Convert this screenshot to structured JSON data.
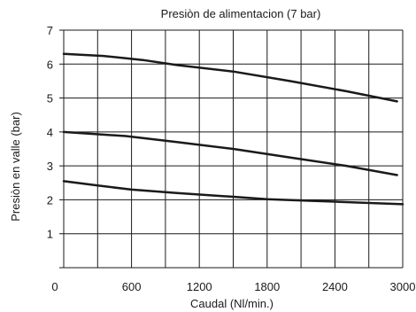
{
  "chart_data": {
    "type": "line",
    "title": "Presiòn de alimentacion  (7 bar)",
    "xlabel": "Caudal (Nl/min.)",
    "ylabel": "Presiòn en valle (bar)",
    "xlim": [
      0,
      3000
    ],
    "ylim": [
      0,
      7
    ],
    "xticks": [
      0,
      600,
      1200,
      1800,
      2400,
      3000
    ],
    "xtick_labels": [
      "0",
      "600",
      "1200",
      "1800",
      "2400",
      "3000"
    ],
    "yticks": [
      1,
      2,
      3,
      4,
      5,
      6,
      7
    ],
    "ytick_labels": [
      "1",
      "2",
      "3",
      "4",
      "5",
      "6",
      "7"
    ],
    "x_gridlines": [
      0,
      300,
      600,
      900,
      1200,
      1500,
      1800,
      2100,
      2400,
      2700,
      3000
    ],
    "grid": true,
    "line_color": "#1a1a1a",
    "series": [
      {
        "x": [
          0,
          350,
          700,
          1000,
          1500,
          2000,
          2500,
          2950
        ],
        "values": [
          6.3,
          6.24,
          6.12,
          5.97,
          5.78,
          5.5,
          5.2,
          4.9
        ]
      },
      {
        "x": [
          0,
          550,
          1000,
          1500,
          2000,
          2500,
          2950
        ],
        "values": [
          4.0,
          3.88,
          3.7,
          3.5,
          3.25,
          3.0,
          2.73
        ]
      },
      {
        "x": [
          0,
          300,
          600,
          1000,
          1500,
          1800,
          2200,
          2600,
          3000
        ],
        "values": [
          2.55,
          2.42,
          2.3,
          2.2,
          2.09,
          2.02,
          1.97,
          1.92,
          1.87
        ]
      }
    ]
  }
}
